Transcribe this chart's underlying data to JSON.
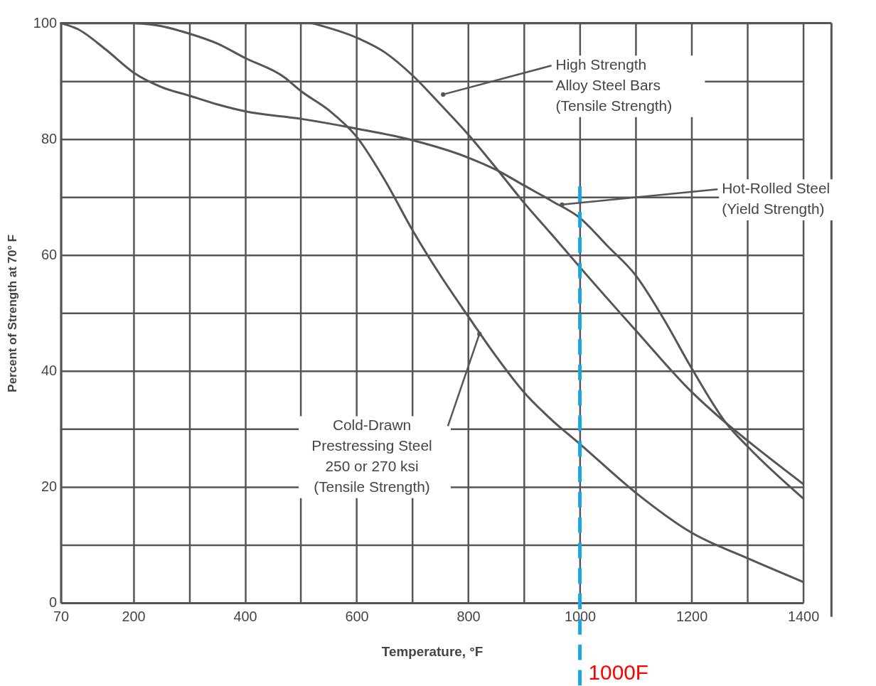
{
  "chart_data": {
    "type": "line",
    "xlabel": "Temperature, °F",
    "ylabel": "Percent of Strength at 70° F",
    "series": [
      {
        "color": "#555555",
        "x": [
          70,
          100,
          150,
          200,
          250,
          300,
          350,
          400,
          500,
          600,
          700,
          800,
          850,
          900,
          950,
          1000,
          1050,
          1100,
          1150,
          1200,
          1262,
          1300,
          1400
        ],
        "values": [
          100,
          99,
          95.5,
          91.5,
          89,
          87.5,
          86,
          84.8,
          83.5,
          81.8,
          79.8,
          76.8,
          74.7,
          72,
          69.3,
          66.4,
          61.5,
          56.5,
          49,
          40.5,
          31,
          27,
          18
        ]
      },
      {
        "color": "#555555",
        "x": [
          200,
          250,
          300,
          350,
          400,
          470,
          500,
          550,
          600,
          650,
          700,
          750,
          800,
          850,
          900,
          950,
          1000,
          1100,
          1200,
          1300,
          1400
        ],
        "values": [
          100,
          99.5,
          98.2,
          96.5,
          94,
          90.7,
          88.3,
          85,
          80.4,
          73,
          64.3,
          56.5,
          49.4,
          42.5,
          36.3,
          31.5,
          27.4,
          19,
          12.1,
          7.7,
          3.6
        ]
      },
      {
        "color": "#555555",
        "x": [
          520,
          600,
          650,
          700,
          750,
          800,
          850,
          900,
          950,
          1000,
          1100,
          1200,
          1262,
          1300,
          1400
        ],
        "values": [
          100,
          97.5,
          95,
          91,
          86,
          80.8,
          75,
          69,
          63.5,
          57.9,
          47,
          36.4,
          31,
          28,
          20.5
        ]
      }
    ],
    "xlim": [
      70,
      1400
    ],
    "ylim": [
      0,
      100
    ],
    "xticks": [
      70,
      200,
      {
        "value": 300,
        "label": null
      },
      400,
      {
        "value": 500,
        "label": null
      },
      600,
      {
        "value": 700,
        "label": null
      },
      800,
      {
        "value": 900,
        "label": null
      },
      1000,
      {
        "value": 1100,
        "label": null
      },
      1200,
      {
        "value": 1300,
        "label": null
      },
      1400
    ],
    "yticks": [
      0,
      {
        "value": 10,
        "label": null
      },
      20,
      {
        "value": 30,
        "label": null
      },
      40,
      {
        "value": 50,
        "label": null
      },
      60,
      {
        "value": 70,
        "label": null
      },
      80,
      {
        "value": 90,
        "label": null
      },
      100
    ],
    "grid": true,
    "marker": "none",
    "line_style": "solid",
    "ref_lines": [
      {
        "axis": "x",
        "value": 1000,
        "label": "1000F",
        "color": "#1aa7e0",
        "line_style": "dashed"
      }
    ],
    "annotations": [
      {
        "text": "High Strength\nAlloy Steel Bars\n(Tensile Strength)",
        "x": 755,
        "y": 87.7
      },
      {
        "text": "Hot-Rolled Steel\n(Yield Strength)",
        "x": 968,
        "y": 68.7
      },
      {
        "text": "Cold-Drawn\nPrestressing Steel\n250 or 270 ksi\n(Tensile Strength)",
        "x": 820,
        "y": 46.4
      }
    ]
  }
}
